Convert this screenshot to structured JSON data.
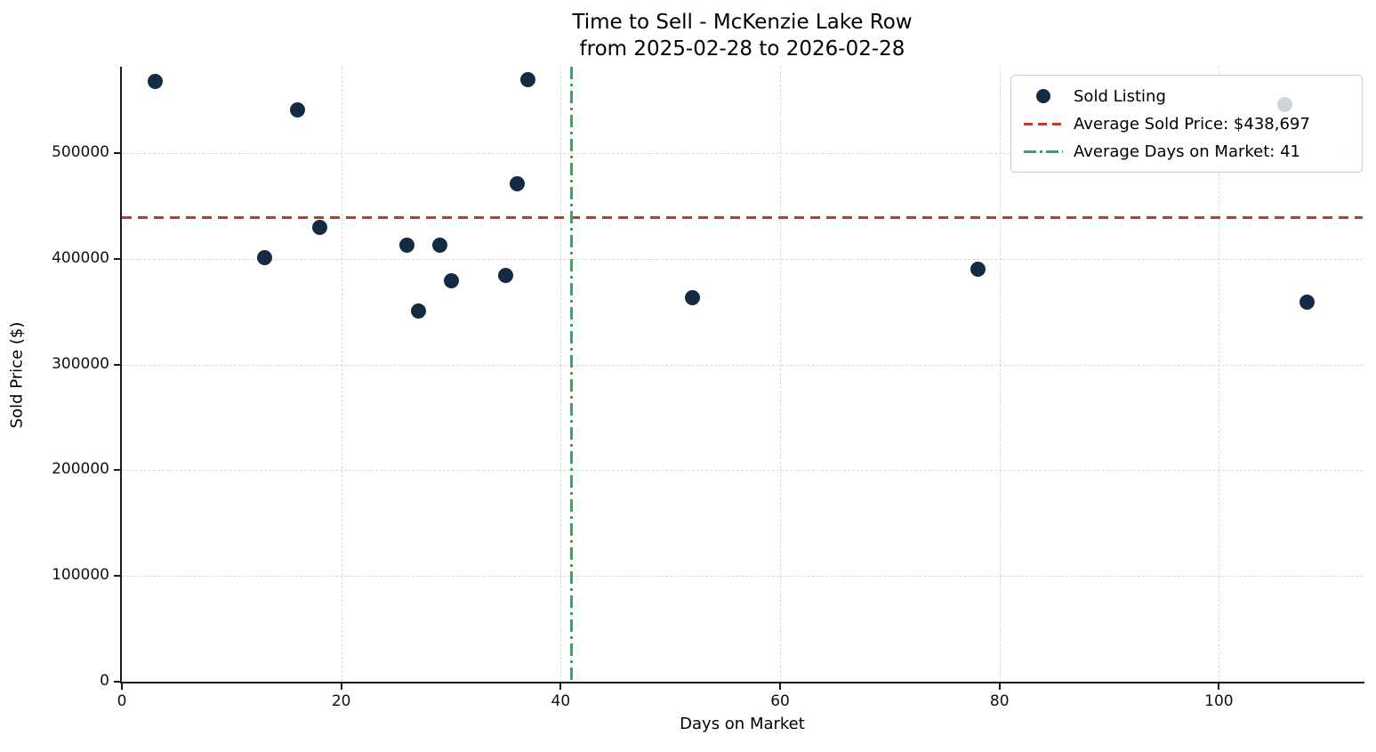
{
  "title": {
    "line1": "Time to Sell - McKenzie Lake Row",
    "line2": "from 2025-02-28 to 2026-02-28"
  },
  "chart_data": {
    "type": "scatter",
    "title": "Time to Sell - McKenzie Lake Row\nfrom 2025-02-28 to 2026-02-28",
    "xlabel": "Days on Market",
    "ylabel": "Sold Price ($)",
    "xlim": [
      0,
      113.1
    ],
    "ylim": [
      0,
      581800
    ],
    "x_ticks": [
      0,
      20,
      40,
      60,
      80,
      100
    ],
    "y_ticks": [
      0,
      100000,
      200000,
      300000,
      400000,
      500000
    ],
    "grid": true,
    "legend_position": "upper right",
    "series": [
      {
        "name": "Sold Listing",
        "type": "scatter",
        "color": "#152a43",
        "marker_size": 17,
        "points": [
          [
            3,
            568000
          ],
          [
            13,
            401000
          ],
          [
            16,
            541000
          ],
          [
            18,
            430000
          ],
          [
            26,
            413000
          ],
          [
            27,
            351000
          ],
          [
            29,
            413000
          ],
          [
            30,
            379000
          ],
          [
            35,
            384000
          ],
          [
            36,
            471000
          ],
          [
            37,
            570000
          ],
          [
            52,
            363000
          ],
          [
            78,
            390000
          ],
          [
            106,
            546000
          ],
          [
            108,
            359000
          ]
        ]
      },
      {
        "name": "Average Sold Price: $438,697",
        "type": "hline",
        "value": 438697,
        "color": "#c0392b",
        "style": "dashed"
      },
      {
        "name": "Average Days on Market: 41",
        "type": "vline",
        "value": 41,
        "color": "#27ae60",
        "style": "dashdot"
      }
    ]
  },
  "colors": {
    "dot": "#152a43",
    "avg_price_line": "#c0392b",
    "avg_days_line": "#27ae60",
    "grid": "#d9d9d9",
    "spine": "#1a1a1a"
  }
}
